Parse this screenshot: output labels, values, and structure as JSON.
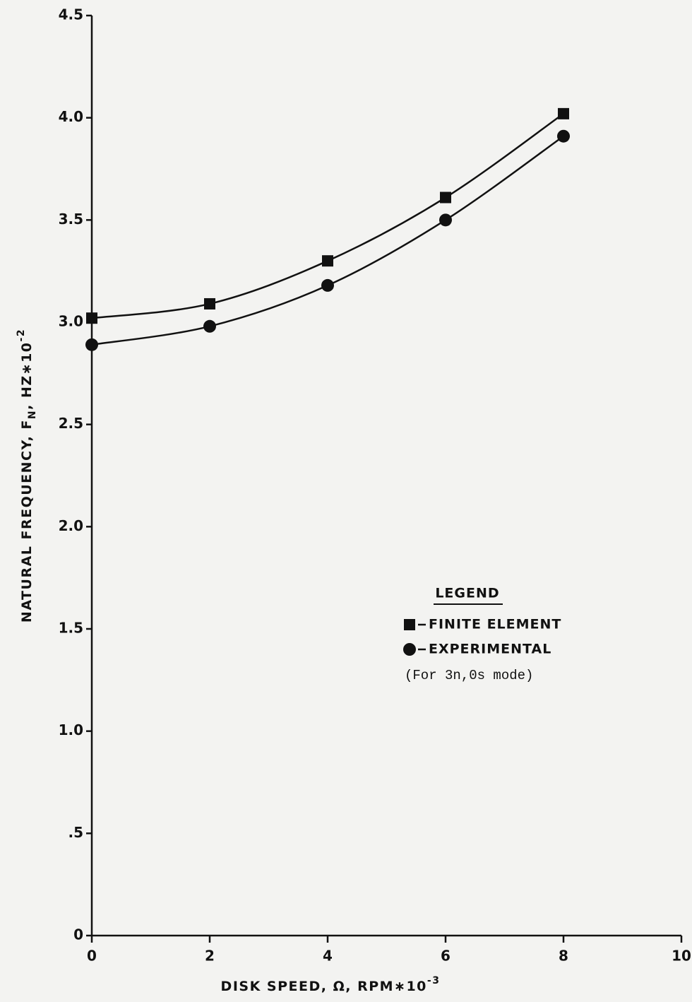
{
  "chart_data": {
    "type": "line",
    "x_label": [
      "DISK SPEED, Ω, RPM∗10",
      "-3"
    ],
    "y_label": [
      "NATURAL FREQUENCY, F",
      "N",
      ", HZ∗10",
      "-2"
    ],
    "x": [
      0,
      2,
      4,
      6,
      8
    ],
    "series": [
      {
        "name": "FINITE ELEMENT",
        "color": "#111111",
        "marker": "square",
        "values": [
          3.02,
          3.09,
          3.3,
          3.61,
          4.02
        ]
      },
      {
        "name": "EXPERIMENTAL",
        "color": "#111111",
        "marker": "circle",
        "values": [
          2.89,
          2.98,
          3.18,
          3.5,
          3.91
        ]
      }
    ],
    "legend_title": "LEGEND",
    "note": "(For 3n,0s mode)",
    "xlim": [
      0,
      10
    ],
    "xticks": [
      0,
      2,
      4,
      6,
      8,
      10
    ],
    "ylim": [
      0,
      4.5
    ],
    "yticks": [
      0,
      {
        "value": 0.5,
        "label": ".5"
      },
      {
        "value": 1.0,
        "label": "1.0"
      },
      1.5,
      {
        "value": 2.0,
        "label": "2.0"
      },
      2.5,
      {
        "value": 3.0,
        "label": "3.0"
      },
      3.5,
      {
        "value": 4.0,
        "label": "4.0"
      },
      4.5
    ],
    "grid": false
  }
}
